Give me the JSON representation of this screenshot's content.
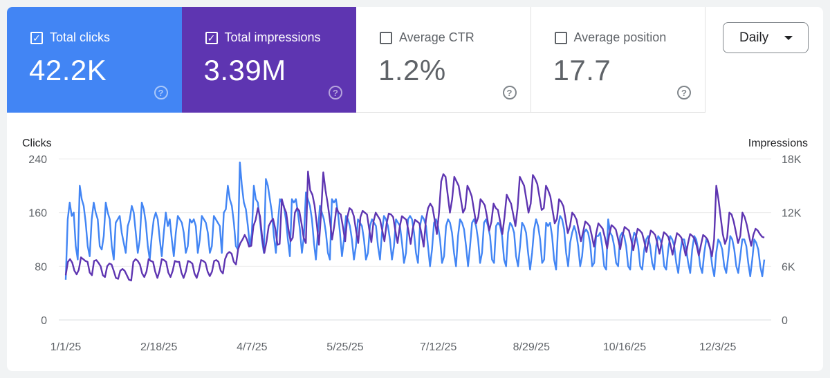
{
  "metrics": [
    {
      "label": "Total clicks",
      "value": "42.2K",
      "checked": true,
      "color": "#4285f4"
    },
    {
      "label": "Total impressions",
      "value": "3.39M",
      "checked": true,
      "color": "#5e35b1"
    },
    {
      "label": "Average CTR",
      "value": "1.2%",
      "checked": false,
      "color": "#ffffff"
    },
    {
      "label": "Average position",
      "value": "17.7",
      "checked": false,
      "color": "#ffffff"
    }
  ],
  "help_glyph": "?",
  "check_glyph": "✓",
  "granularity": {
    "selected": "Daily"
  },
  "chart_data": {
    "type": "line",
    "left_axis": {
      "label": "Clicks",
      "min": 0,
      "max": 240,
      "ticks": [
        "0",
        "80",
        "160",
        "240"
      ]
    },
    "right_axis": {
      "label": "Impressions",
      "min": 0,
      "max": 18000,
      "ticks": [
        "0",
        "6K",
        "12K",
        "18K"
      ]
    },
    "x_ticks": [
      "1/1/25",
      "2/18/25",
      "4/7/25",
      "5/25/25",
      "7/12/25",
      "8/29/25",
      "10/16/25",
      "12/3/25"
    ],
    "x_tick_days": [
      0,
      48,
      96,
      144,
      192,
      240,
      288,
      336
    ],
    "x_domain_days": [
      0,
      360
    ],
    "grid": true,
    "series": [
      {
        "axis": "left",
        "color": "#4285f4",
        "values": [
          60,
          150,
          175,
          155,
          160,
          110,
          90,
          200,
          180,
          170,
          145,
          110,
          95,
          150,
          175,
          160,
          150,
          110,
          105,
          125,
          175,
          160,
          150,
          110,
          90,
          145,
          150,
          155,
          130,
          115,
          100,
          140,
          150,
          170,
          160,
          130,
          100,
          120,
          175,
          165,
          145,
          110,
          90,
          125,
          150,
          160,
          150,
          120,
          95,
          130,
          160,
          140,
          150,
          120,
          95,
          130,
          155,
          150,
          145,
          130,
          100,
          110,
          150,
          145,
          150,
          140,
          100,
          120,
          155,
          150,
          145,
          130,
          100,
          110,
          155,
          150,
          145,
          140,
          100,
          160,
          165,
          200,
          180,
          170,
          145,
          110,
          105,
          235,
          200,
          175,
          165,
          140,
          110,
          130,
          200,
          180,
          175,
          150,
          120,
          100,
          210,
          200,
          180,
          160,
          125,
          100,
          145,
          180,
          175,
          170,
          150,
          120,
          95,
          180,
          175,
          180,
          160,
          135,
          100,
          125,
          190,
          180,
          170,
          150,
          115,
          90,
          130,
          170,
          160,
          150,
          130,
          100,
          90,
          180,
          175,
          180,
          160,
          130,
          95,
          120,
          155,
          150,
          140,
          120,
          90,
          110,
          150,
          145,
          140,
          120,
          90,
          100,
          140,
          150,
          145,
          140,
          110,
          90,
          130,
          155,
          150,
          140,
          120,
          90,
          110,
          150,
          145,
          140,
          115,
          85,
          100,
          150,
          155,
          150,
          130,
          100,
          85,
          140,
          155,
          150,
          140,
          110,
          80,
          105,
          145,
          150,
          140,
          120,
          85,
          95,
          140,
          150,
          145,
          130,
          100,
          80,
          125,
          150,
          145,
          135,
          110,
          80,
          110,
          145,
          150,
          140,
          120,
          85,
          100,
          145,
          150,
          140,
          125,
          90,
          85,
          140,
          145,
          140,
          125,
          90,
          80,
          130,
          145,
          140,
          130,
          95,
          80,
          110,
          145,
          140,
          130,
          100,
          75,
          100,
          135,
          150,
          140,
          120,
          85,
          90,
          145,
          140,
          145,
          125,
          90,
          75,
          140,
          155,
          150,
          135,
          100,
          80,
          115,
          130,
          140,
          130,
          110,
          80,
          95,
          130,
          135,
          130,
          115,
          80,
          85,
          125,
          125,
          130,
          110,
          80,
          75,
          150,
          130,
          125,
          110,
          85,
          80,
          125,
          130,
          125,
          110,
          80,
          75,
          115,
          130,
          125,
          110,
          80,
          75,
          105,
          120,
          125,
          110,
          85,
          75,
          110,
          125,
          120,
          110,
          80,
          75,
          105,
          125,
          120,
          110,
          85,
          70,
          100,
          120,
          120,
          105,
          85,
          70,
          105,
          125,
          120,
          105,
          80,
          70,
          100,
          120,
          115,
          105,
          80,
          65,
          100,
          120,
          115,
          105,
          80,
          70,
          95,
          125,
          120,
          105,
          80,
          70,
          95,
          120,
          120,
          110,
          85,
          65,
          90,
          120,
          115,
          105,
          80,
          65,
          90
        ],
        "jitter_note": ""
      },
      {
        "axis": "right",
        "color": "#5e35b1",
        "values": [
          5000,
          6500,
          6800,
          6400,
          5500,
          5100,
          5600,
          7000,
          6800,
          6600,
          6500,
          5300,
          5000,
          6600,
          6700,
          6400,
          6000,
          5000,
          4800,
          6000,
          6300,
          6200,
          5500,
          4700,
          4600,
          5500,
          5700,
          5500,
          5000,
          4500,
          4400,
          6500,
          6800,
          6600,
          6200,
          5200,
          4800,
          5400,
          6800,
          6600,
          6500,
          5400,
          4700,
          5500,
          6800,
          6700,
          6500,
          5300,
          4800,
          5500,
          6600,
          6500,
          6500,
          5300,
          4700,
          5400,
          6600,
          6500,
          6300,
          5200,
          4700,
          5500,
          6700,
          6600,
          6400,
          5400,
          4900,
          5400,
          6600,
          6700,
          6500,
          5500,
          5200,
          6800,
          7400,
          7600,
          7400,
          6500,
          6200,
          7900,
          8600,
          9000,
          9500,
          9000,
          8200,
          8300,
          10500,
          11200,
          12500,
          11600,
          9200,
          7500,
          8800,
          10500,
          11000,
          11300,
          10200,
          8400,
          8500,
          13500,
          12600,
          12000,
          10200,
          8800,
          9200,
          12000,
          12500,
          12200,
          10800,
          9200,
          8600,
          16600,
          14500,
          14000,
          12800,
          10700,
          8400,
          12000,
          16500,
          14500,
          13000,
          11200,
          9000,
          10500,
          12500,
          12000,
          11800,
          10400,
          8800,
          11500,
          12500,
          12300,
          11600,
          10000,
          8600,
          11500,
          12200,
          12000,
          11800,
          10200,
          8700,
          11000,
          12000,
          11600,
          11200,
          10000,
          8800,
          10800,
          11900,
          11800,
          11500,
          10000,
          8600,
          10400,
          11600,
          11400,
          11200,
          10000,
          8500,
          10200,
          11200,
          11000,
          10800,
          9600,
          8200,
          11200,
          12500,
          13000,
          12600,
          11200,
          9600,
          12000,
          15500,
          16300,
          16000,
          14000,
          12000,
          13500,
          16000,
          15500,
          15000,
          13500,
          12000,
          12500,
          15000,
          14500,
          13800,
          12300,
          10800,
          11500,
          13500,
          13200,
          12800,
          11500,
          10000,
          11000,
          13000,
          12500,
          12300,
          11000,
          9600,
          11500,
          14000,
          13500,
          13000,
          11800,
          10500,
          12500,
          16000,
          15500,
          15000,
          13500,
          12000,
          13000,
          16200,
          15800,
          15200,
          13800,
          12300,
          12500,
          15000,
          14500,
          13800,
          12300,
          10800,
          11300,
          13500,
          13200,
          12700,
          11200,
          9700,
          10500,
          12000,
          11700,
          11200,
          10000,
          8800,
          9800,
          11000,
          10800,
          10500,
          9400,
          8200,
          9700,
          10800,
          10500,
          10200,
          9200,
          8000,
          9600,
          10600,
          10400,
          10100,
          9100,
          7900,
          9300,
          10400,
          10200,
          10000,
          9000,
          7800,
          9100,
          10200,
          10000,
          9700,
          8800,
          7600,
          8900,
          10000,
          9800,
          9500,
          8600,
          7400,
          8700,
          9800,
          9600,
          9300,
          8400,
          7300,
          8600,
          9700,
          9500,
          9200,
          8300,
          7200,
          8500,
          9600,
          9400,
          9100,
          8300,
          7200,
          8400,
          9500,
          9300,
          9000,
          8200,
          7100,
          9000,
          15000,
          13500,
          11500,
          9600,
          8500,
          9200,
          12000,
          11800,
          11000,
          9800,
          8600,
          9400,
          12000,
          11500,
          10600,
          9400,
          8300,
          9500,
          10200,
          10000,
          9600,
          9300,
          9200
        ],
        "jitter_note": ""
      }
    ]
  }
}
